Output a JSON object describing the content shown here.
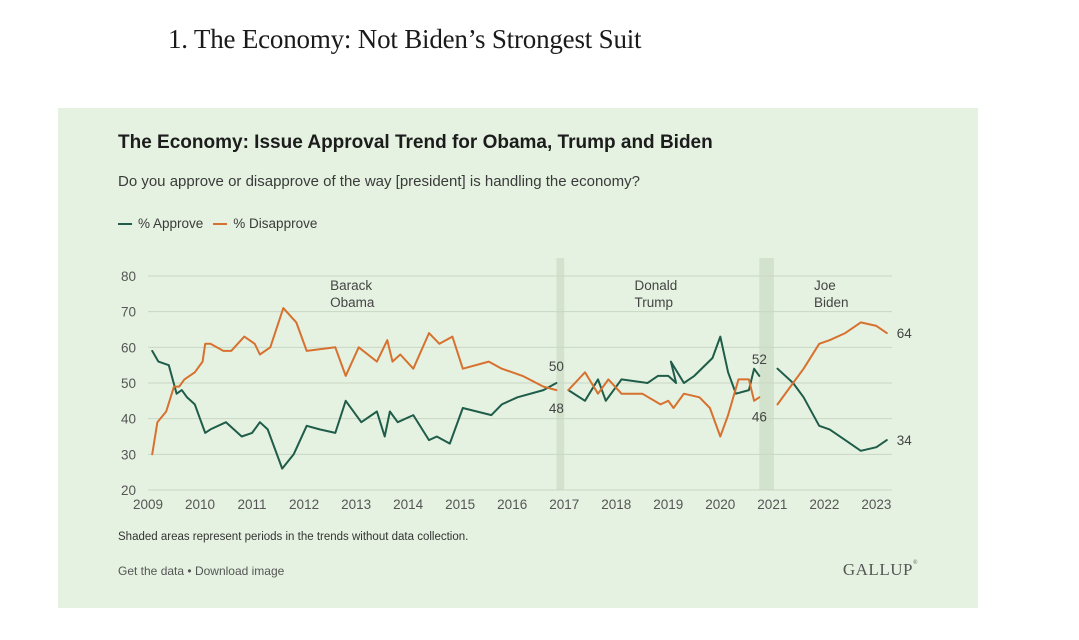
{
  "article": {
    "heading": "1. The Economy: Not Biden’s Strongest Suit"
  },
  "card": {
    "title": "The Economy: Issue Approval Trend for Obama, Trump and Biden",
    "subtitle": "Do you approve or disapprove of the way [president] is handling the economy?",
    "footnote": "Shaded areas represent periods in the trends without data collection.",
    "get_data": "Get the data",
    "separator": "•",
    "download": "Download image",
    "logo": "GALLUP"
  },
  "colors": {
    "approve": "#1f5c4a",
    "disapprove": "#d7712f",
    "background": "#e5f2e1",
    "shade": "#d2e2cd",
    "grid": "#c9d6c4"
  },
  "chart_data": {
    "type": "line",
    "title": "The Economy: Issue Approval Trend for Obama, Trump and Biden",
    "subtitle": "Do you approve or disapprove of the way [president] is handling the economy?",
    "xlim": [
      2009,
      2023.3
    ],
    "ylim": [
      20,
      80
    ],
    "y_ticks": [
      20,
      30,
      40,
      50,
      60,
      70,
      80
    ],
    "x_ticks": [
      2009,
      2010,
      2011,
      2012,
      2013,
      2014,
      2015,
      2016,
      2017,
      2018,
      2019,
      2020,
      2021,
      2022,
      2023
    ],
    "grid": true,
    "legend": "top-left",
    "shaded_periods": [
      [
        2016.85,
        2017.0
      ],
      [
        2020.75,
        2021.03
      ]
    ],
    "eras": [
      {
        "lines": [
          "Barack",
          "Obama"
        ],
        "x": 2012.5
      },
      {
        "lines": [
          "Donald",
          "Trump"
        ],
        "x": 2018.35
      },
      {
        "lines": [
          "Joe",
          "Biden"
        ],
        "x": 2021.8
      }
    ],
    "series": [
      {
        "name": "% Approve",
        "segments": [
          [
            [
              2009.08,
              59
            ],
            [
              2009.2,
              56
            ],
            [
              2009.4,
              55
            ],
            [
              2009.55,
              47
            ],
            [
              2009.65,
              48
            ],
            [
              2009.75,
              46
            ],
            [
              2009.9,
              44
            ],
            [
              2010.0,
              40
            ],
            [
              2010.1,
              36
            ],
            [
              2010.2,
              37
            ],
            [
              2010.5,
              39
            ],
            [
              2010.8,
              35
            ],
            [
              2011.0,
              36
            ],
            [
              2011.15,
              39
            ],
            [
              2011.3,
              37
            ],
            [
              2011.58,
              26
            ],
            [
              2011.8,
              30
            ],
            [
              2012.05,
              38
            ],
            [
              2012.3,
              37
            ],
            [
              2012.6,
              36
            ],
            [
              2012.8,
              45
            ],
            [
              2013.1,
              39
            ],
            [
              2013.4,
              42
            ],
            [
              2013.55,
              35
            ],
            [
              2013.65,
              42
            ],
            [
              2013.8,
              39
            ],
            [
              2014.1,
              41
            ],
            [
              2014.4,
              34
            ],
            [
              2014.55,
              35
            ],
            [
              2014.8,
              33
            ],
            [
              2015.05,
              43
            ],
            [
              2015.6,
              41
            ],
            [
              2015.8,
              44
            ],
            [
              2016.1,
              46
            ],
            [
              2016.6,
              48
            ],
            [
              2016.85,
              50
            ]
          ],
          [
            [
              2017.08,
              48
            ],
            [
              2017.4,
              45
            ],
            [
              2017.65,
              51
            ],
            [
              2017.8,
              45
            ],
            [
              2018.1,
              51
            ],
            [
              2018.6,
              50
            ],
            [
              2018.8,
              52
            ],
            [
              2019.0,
              52
            ],
            [
              2019.15,
              50
            ],
            [
              2019.05,
              56
            ],
            [
              2019.3,
              50
            ],
            [
              2019.5,
              52
            ],
            [
              2019.85,
              57
            ],
            [
              2020.0,
              63
            ],
            [
              2020.15,
              53
            ],
            [
              2020.3,
              47
            ],
            [
              2020.55,
              48
            ],
            [
              2020.65,
              54
            ],
            [
              2020.75,
              52
            ]
          ],
          [
            [
              2021.1,
              54
            ],
            [
              2021.4,
              50
            ],
            [
              2021.6,
              46
            ],
            [
              2021.9,
              38
            ],
            [
              2022.1,
              37
            ],
            [
              2022.4,
              34
            ],
            [
              2022.7,
              31
            ],
            [
              2023.0,
              32
            ],
            [
              2023.2,
              34
            ]
          ]
        ],
        "end_labels": [
          {
            "x": 2016.85,
            "y": 50,
            "text": "50"
          },
          {
            "x": 2020.75,
            "y": 52,
            "text": "52"
          },
          {
            "x": 2023.2,
            "y": 34,
            "text": "34"
          }
        ]
      },
      {
        "name": "% Disapprove",
        "segments": [
          [
            [
              2009.08,
              30
            ],
            [
              2009.18,
              39
            ],
            [
              2009.35,
              42
            ],
            [
              2009.5,
              49
            ],
            [
              2009.6,
              49
            ],
            [
              2009.7,
              51
            ],
            [
              2009.9,
              53
            ],
            [
              2010.05,
              56
            ],
            [
              2010.1,
              61
            ],
            [
              2010.2,
              61
            ],
            [
              2010.45,
              59
            ],
            [
              2010.6,
              59
            ],
            [
              2010.85,
              63
            ],
            [
              2011.05,
              61
            ],
            [
              2011.15,
              58
            ],
            [
              2011.35,
              60
            ],
            [
              2011.6,
              71
            ],
            [
              2011.85,
              67
            ],
            [
              2012.05,
              59
            ],
            [
              2012.6,
              60
            ],
            [
              2012.8,
              52
            ],
            [
              2013.05,
              60
            ],
            [
              2013.4,
              56
            ],
            [
              2013.6,
              62
            ],
            [
              2013.7,
              56
            ],
            [
              2013.85,
              58
            ],
            [
              2014.1,
              54
            ],
            [
              2014.4,
              64
            ],
            [
              2014.6,
              61
            ],
            [
              2014.85,
              63
            ],
            [
              2015.05,
              54
            ],
            [
              2015.55,
              56
            ],
            [
              2015.8,
              54
            ],
            [
              2016.2,
              52
            ],
            [
              2016.6,
              49
            ],
            [
              2016.85,
              48
            ]
          ],
          [
            [
              2017.08,
              48
            ],
            [
              2017.4,
              53
            ],
            [
              2017.65,
              47
            ],
            [
              2017.85,
              51
            ],
            [
              2018.1,
              47
            ],
            [
              2018.5,
              47
            ],
            [
              2018.85,
              44
            ],
            [
              2019.0,
              45
            ],
            [
              2019.1,
              43
            ],
            [
              2019.3,
              47
            ],
            [
              2019.6,
              46
            ],
            [
              2019.8,
              43
            ],
            [
              2020.0,
              35
            ],
            [
              2020.15,
              41
            ],
            [
              2020.35,
              51
            ],
            [
              2020.55,
              51
            ],
            [
              2020.65,
              45
            ],
            [
              2020.75,
              46
            ]
          ],
          [
            [
              2021.1,
              44
            ],
            [
              2021.3,
              48
            ],
            [
              2021.6,
              54
            ],
            [
              2021.9,
              61
            ],
            [
              2022.1,
              62
            ],
            [
              2022.4,
              64
            ],
            [
              2022.7,
              67
            ],
            [
              2023.0,
              66
            ],
            [
              2023.2,
              64
            ]
          ]
        ],
        "end_labels": [
          {
            "x": 2016.85,
            "y": 48,
            "text": "48"
          },
          {
            "x": 2020.75,
            "y": 46,
            "text": "46"
          },
          {
            "x": 2023.2,
            "y": 64,
            "text": "64"
          }
        ]
      }
    ]
  }
}
